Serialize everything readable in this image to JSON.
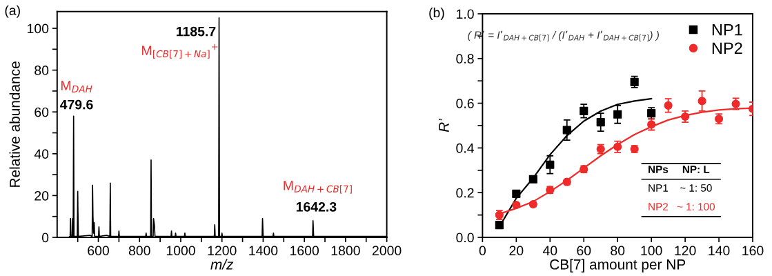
{
  "chart_data": [
    {
      "type": "line",
      "xlabel": "m/z",
      "ylabel": "Relative abundance",
      "xlim": [
        400,
        2000
      ],
      "ylim": [
        0,
        108
      ],
      "xticks": [
        {
          "value": 500,
          "label": null
        },
        600,
        {
          "value": 700,
          "label": null
        },
        800,
        {
          "value": 900,
          "label": null
        },
        1000,
        {
          "value": 1100,
          "label": null
        },
        1200,
        {
          "value": 1300,
          "label": null
        },
        1400,
        {
          "value": 1500,
          "label": null
        },
        1600,
        {
          "value": 1700,
          "label": null
        },
        1800,
        {
          "value": 1900,
          "label": null
        },
        2000
      ],
      "yticks": [
        0,
        {
          "value": 10,
          "label": null
        },
        20,
        {
          "value": 30,
          "label": null
        },
        40,
        {
          "value": 50,
          "label": null
        },
        60,
        {
          "value": 70,
          "label": null
        },
        80,
        {
          "value": 90,
          "label": null
        },
        100
      ],
      "grid": false,
      "legend": false,
      "marker": "none",
      "line_style": "solid",
      "series": [
        {
          "color": "#000000",
          "x": [
            455,
            463,
            465,
            467,
            473,
            475,
            477,
            478,
            480,
            482,
            498,
            500,
            501,
            503,
            560,
            570,
            572,
            574,
            577,
            580,
            582,
            601,
            603,
            605,
            640,
            656,
            658,
            660,
            698,
            700,
            702,
            800,
            830,
            832,
            834,
            854,
            856,
            858,
            866,
            868,
            872,
            875,
            953,
            955,
            957,
            973,
            975,
            977,
            1018,
            1020,
            1022,
            1163,
            1165,
            1167,
            1184,
            1186,
            1188,
            1198,
            1200,
            1202,
            1300,
            1395,
            1397,
            1400,
            1448,
            1450,
            1452,
            1600,
            1640,
            1642,
            1645,
            1800,
            2000
          ],
          "values": [
            0,
            0.5,
            9,
            0.5,
            0.5,
            9,
            0.5,
            0.5,
            58,
            0.5,
            0.5,
            22,
            13,
            0.5,
            1,
            0.5,
            25,
            10,
            2,
            7,
            0.5,
            0.5,
            5,
            0.5,
            1,
            0.5,
            26,
            0.5,
            0.5,
            3,
            0.5,
            0.5,
            0.5,
            2,
            0.5,
            0.5,
            37,
            0.5,
            0.5,
            9,
            6,
            0.5,
            0.5,
            3,
            0.5,
            0.5,
            2,
            0.5,
            0.5,
            2,
            0.5,
            0.5,
            6,
            0.5,
            0.5,
            105,
            0.5,
            0.5,
            2,
            0.5,
            0.5,
            0.5,
            9,
            0.5,
            0.5,
            2,
            0.5,
            0.5,
            0.5,
            8,
            0.5,
            0.5,
            0.5
          ]
        }
      ],
      "annotations": [
        "(a)",
        "1185.7",
        "M$_{[CB[7]+Na]}$$^{+}$",
        "M$_{DAH}$",
        "479.6",
        "M$_{DAH+CB[7]}$",
        "1642.3"
      ]
    },
    {
      "type": "scatter",
      "xlabel": "CB[7] amount per NP",
      "ylabel": "R’",
      "xlim": [
        0,
        160
      ],
      "ylim": [
        0,
        1.0
      ],
      "xticks": [
        0,
        20,
        40,
        60,
        80,
        100,
        120,
        140,
        160
      ],
      "yticks": [
        {
          "value": 0,
          "label": "0.0"
        },
        {
          "value": 0.1,
          "label": null
        },
        0.2,
        {
          "value": 0.3,
          "label": null
        },
        0.4,
        {
          "value": 0.5,
          "label": null
        },
        0.6,
        {
          "value": 0.7,
          "label": null
        },
        0.8,
        {
          "value": 0.9,
          "label": null
        },
        {
          "value": 1.0,
          "label": "1.0"
        }
      ],
      "grid": false,
      "legend": "top right",
      "series": [
        {
          "name": "NP1",
          "color": "#000000",
          "marker": "square",
          "x": [
            10,
            20,
            30,
            40,
            50,
            60,
            70,
            80,
            90,
            100
          ],
          "values": [
            0.055,
            0.195,
            0.26,
            0.325,
            0.48,
            0.565,
            0.515,
            0.55,
            0.695,
            0.555
          ],
          "errors": [
            0.01,
            0.015,
            0.01,
            0.04,
            0.045,
            0.03,
            0.04,
            0.04,
            0.025,
            0.025
          ]
        },
        {
          "name": "NP2",
          "color": "#ee2a2a",
          "marker": "circle",
          "x": [
            10,
            20,
            30,
            40,
            50,
            60,
            70,
            80,
            90,
            100,
            110,
            120,
            130,
            140,
            150,
            160
          ],
          "values": [
            0.1,
            0.145,
            0.148,
            0.212,
            0.248,
            0.305,
            0.395,
            0.405,
            0.395,
            0.505,
            0.59,
            0.54,
            0.61,
            0.53,
            0.597,
            0.575
          ],
          "errors": [
            0.02,
            0.01,
            0.01,
            0.015,
            0.012,
            0.015,
            0.02,
            0.025,
            0.015,
            0.025,
            0.03,
            0.025,
            0.045,
            0.022,
            0.025,
            0.03
          ]
        },
        {
          "type": "line",
          "color": "#000000",
          "x": [
            11,
            20,
            30,
            40,
            50,
            60,
            70,
            80,
            90,
            100
          ],
          "values": [
            0.06,
            0.175,
            0.265,
            0.37,
            0.455,
            0.52,
            0.565,
            0.595,
            0.61,
            0.62
          ]
        },
        {
          "type": "line",
          "color": "#ee2a2a",
          "x": [
            10,
            20,
            30,
            40,
            50,
            60,
            70,
            80,
            90,
            100,
            110,
            120,
            130,
            140,
            150,
            160
          ],
          "values": [
            0.105,
            0.13,
            0.16,
            0.205,
            0.255,
            0.31,
            0.365,
            0.415,
            0.46,
            0.495,
            0.525,
            0.545,
            0.56,
            0.57,
            0.575,
            0.578
          ]
        }
      ],
      "annotations": [
        "(b)",
        "( R’ = I’$_{DAH+CB[7]}$ / (I’$_{DAH}$ + I’$_{DAH+CB[7]}$) )",
        "NPs",
        "NP: L",
        "NP1",
        "~ 1: 50",
        "NP2",
        "~ 1: 100"
      ]
    }
  ]
}
